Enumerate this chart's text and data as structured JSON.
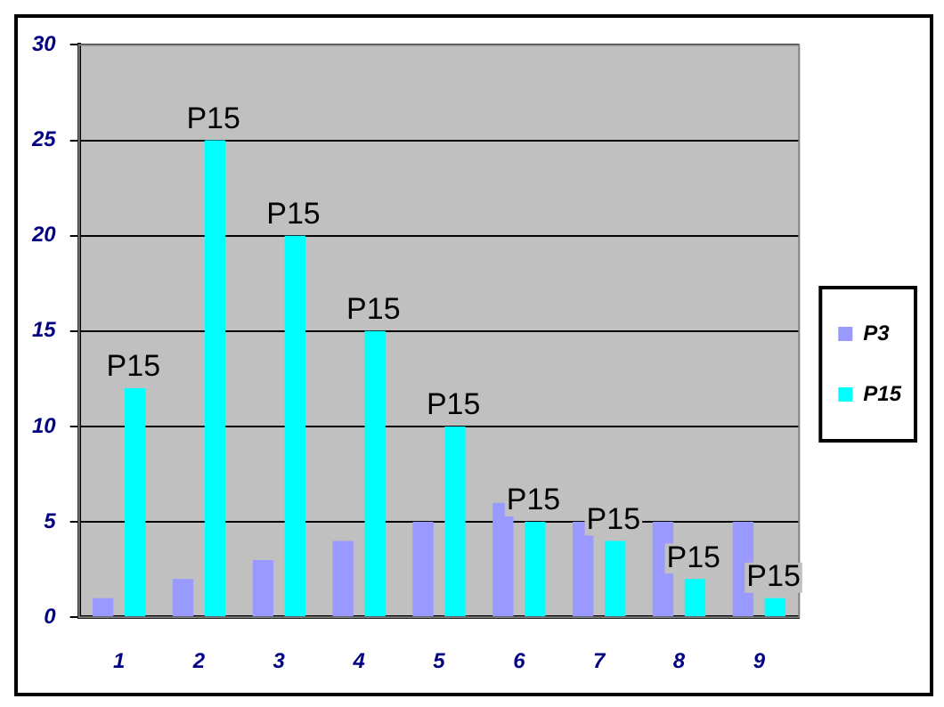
{
  "chart_data": {
    "type": "bar",
    "categories": [
      "1",
      "2",
      "3",
      "4",
      "5",
      "6",
      "7",
      "8",
      "9"
    ],
    "series": [
      {
        "name": "P3",
        "color": "#9999ff",
        "values": [
          1,
          2,
          3,
          4,
          5,
          6,
          5,
          5,
          5
        ]
      },
      {
        "name": "P15",
        "color": "#00ffff",
        "values": [
          12,
          25,
          20,
          15,
          10,
          5,
          4,
          2,
          1
        ]
      }
    ],
    "ylim": [
      0,
      30
    ],
    "yticks": [
      0,
      5,
      10,
      15,
      20,
      25,
      30
    ],
    "grid": "y",
    "legend": "right",
    "annotations": [
      {
        "text": "P15",
        "x": "1",
        "y": 12
      },
      {
        "text": "P15",
        "x": "2",
        "y": 25
      },
      {
        "text": "P15",
        "x": "3",
        "y": 20
      },
      {
        "text": "P15",
        "x": "4",
        "y": 15
      },
      {
        "text": "P15",
        "x": "5",
        "y": 10
      },
      {
        "text": "P15",
        "x": "6",
        "y": 5
      },
      {
        "text": "P15",
        "x": "7",
        "y": 4
      },
      {
        "text": "P15",
        "x": "8",
        "y": 2
      },
      {
        "text": "P15",
        "x": "9",
        "y": 1
      }
    ]
  }
}
